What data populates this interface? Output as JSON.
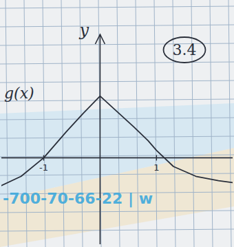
{
  "chart_data": {
    "type": "line",
    "y_label": "y",
    "annotations": [
      "3.4",
      "-700-70-66-22 | w"
    ],
    "x": [
      -1.75,
      -1.4,
      -1,
      -0.6,
      -0.3,
      0,
      0.3,
      0.6,
      0.85,
      1,
      1.3,
      1.7,
      2.1,
      2.35
    ],
    "series": [
      {
        "name": "g(x)",
        "color": "#2a2f3a",
        "values": [
          -0.45,
          -0.3,
          0,
          0.42,
          0.72,
          1.0,
          0.75,
          0.5,
          0.28,
          0.12,
          -0.14,
          -0.3,
          -0.37,
          -0.4
        ]
      }
    ],
    "xlim": [
      -1.75,
      2.35
    ],
    "ylim": [
      -1.4,
      2.0
    ],
    "xticks": [
      -1,
      1
    ],
    "yticks": [],
    "tick_labels": "x"
  }
}
